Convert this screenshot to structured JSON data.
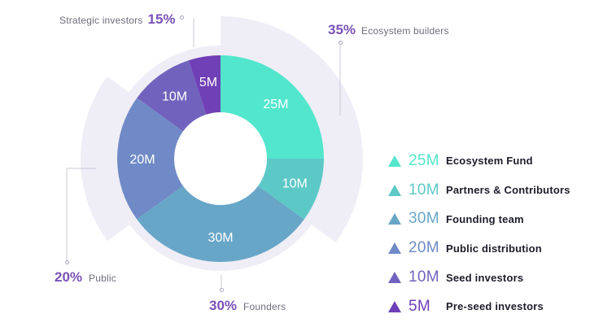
{
  "chart_data": {
    "type": "pie",
    "variant": "donut",
    "slices": [
      {
        "label": "Ecosystem Fund",
        "value": 25,
        "display": "25M",
        "color": "#52e6cc"
      },
      {
        "label": "Partners & Contributors",
        "value": 10,
        "display": "10M",
        "color": "#5cc9c6"
      },
      {
        "label": "Founding team",
        "value": 30,
        "display": "30M",
        "color": "#68a6c8"
      },
      {
        "label": "Public distribution",
        "value": 20,
        "display": "20M",
        "color": "#6f8ac6"
      },
      {
        "label": "Seed investors",
        "value": 10,
        "display": "10M",
        "color": "#7163bd"
      },
      {
        "label": "Pre-seed investors",
        "value": 5,
        "display": "5M",
        "color": "#7040b6"
      }
    ],
    "groups": [
      {
        "name": "Ecosystem builders",
        "percent": "35%",
        "share": 35
      },
      {
        "name": "Founders",
        "percent": "30%",
        "share": 30
      },
      {
        "name": "Public",
        "percent": "20%",
        "share": 20
      },
      {
        "name": "Strategic investors",
        "percent": "15%",
        "share": 15
      }
    ],
    "legend_position": "right"
  }
}
